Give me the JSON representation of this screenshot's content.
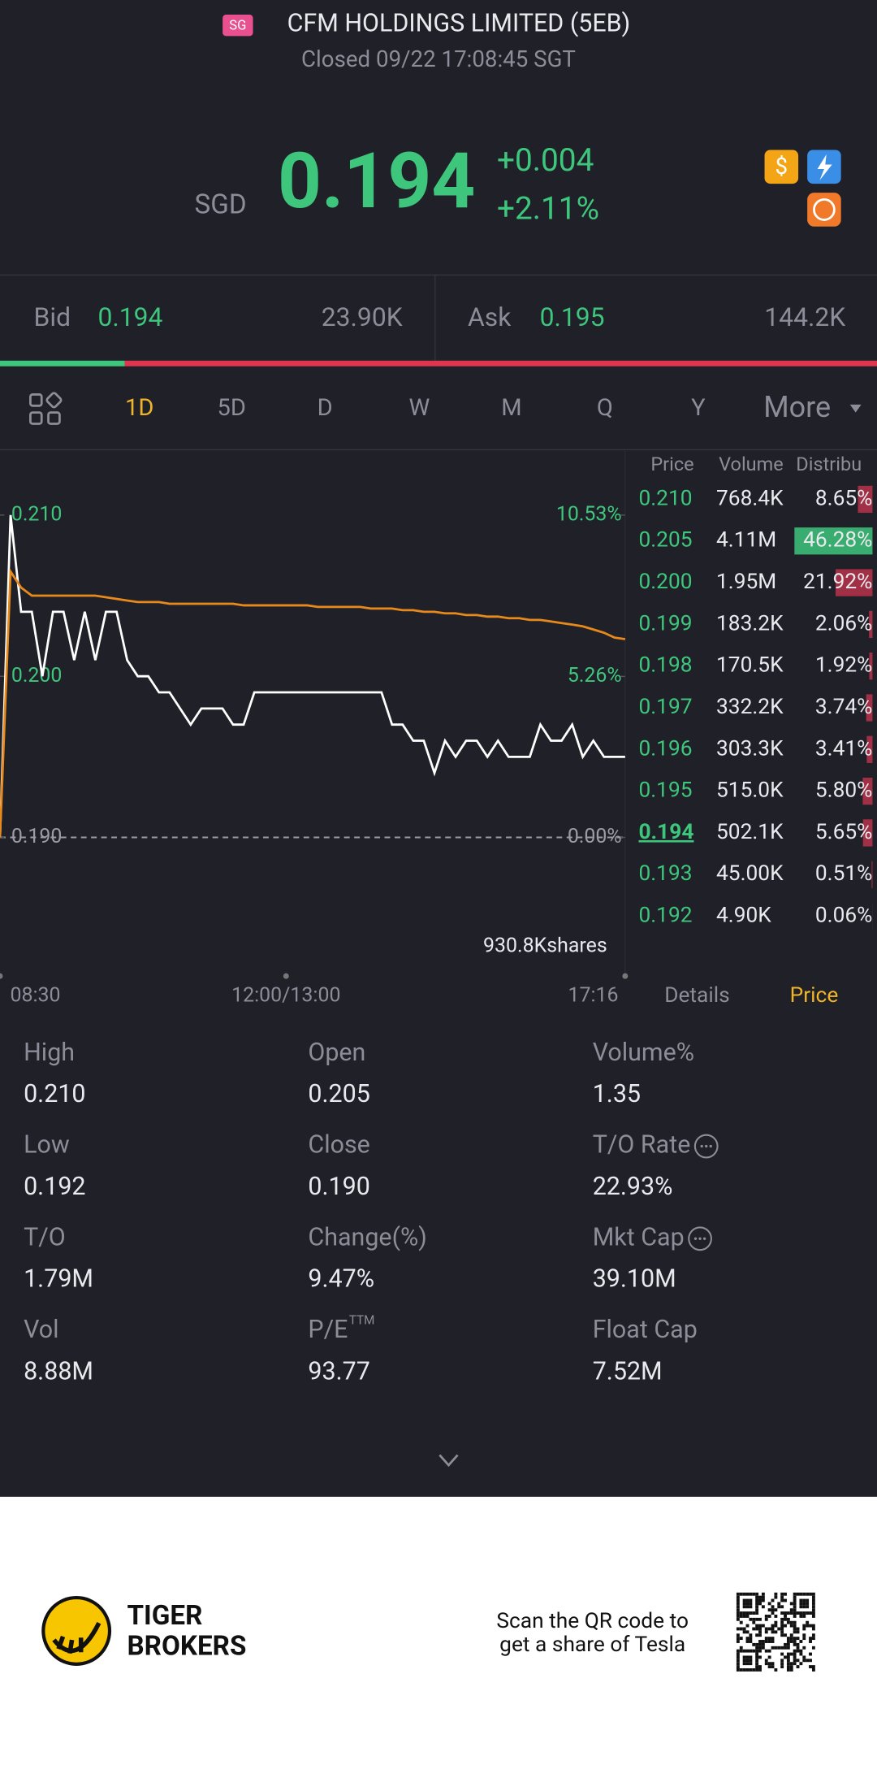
{
  "header": {
    "market_badge": "SG",
    "title": "CFM HOLDINGS LIMITED (5EB)",
    "status": "Closed 09/22 17:08:45 SGT"
  },
  "quote": {
    "currency": "SGD",
    "price": "0.194",
    "change": "+0.004",
    "change_pct": "+2.11%"
  },
  "bid_ask": {
    "bid_label": "Bid",
    "bid_price": "0.194",
    "bid_size": {
      "value": 23900,
      "label": "23.90K"
    },
    "ask_label": "Ask",
    "ask_price": "0.195",
    "ask_size": {
      "value": 144200,
      "label": "144.2K"
    }
  },
  "tabs": [
    "1D",
    "5D",
    "D",
    "W",
    "M",
    "Q",
    "Y",
    "More"
  ],
  "active_tab": 0,
  "chart_data": {
    "type": "line",
    "series": [
      {
        "color": "#ffffff",
        "values": [
          0.19,
          0.21,
          0.204,
          0.204,
          0.2,
          0.204,
          0.204,
          0.201,
          0.204,
          0.201,
          0.204,
          0.204,
          0.201,
          0.2,
          0.2,
          0.199,
          0.199,
          0.198,
          0.197,
          0.198,
          0.198,
          0.198,
          0.197,
          0.197,
          0.199,
          0.199,
          0.199,
          0.199,
          0.199,
          0.199,
          0.199,
          0.199,
          0.199,
          0.199,
          0.199,
          0.199,
          0.199,
          0.197,
          0.197,
          0.196,
          0.196,
          0.194,
          0.196,
          0.195,
          0.196,
          0.196,
          0.195,
          0.196,
          0.195,
          0.195,
          0.195,
          0.197,
          0.196,
          0.196,
          0.197,
          0.195,
          0.196,
          0.195,
          0.195,
          0.195
        ]
      },
      {
        "color": "#e8891c",
        "values": [
          0.19,
          0.2065,
          0.2055,
          0.205,
          0.205,
          0.205,
          0.205,
          0.205,
          0.205,
          0.205,
          0.2049,
          0.2048,
          0.2047,
          0.2046,
          0.2046,
          0.2046,
          0.2045,
          0.2045,
          0.2045,
          0.2045,
          0.2045,
          0.2045,
          0.2045,
          0.2044,
          0.2044,
          0.2044,
          0.2044,
          0.2044,
          0.2044,
          0.2044,
          0.2043,
          0.2043,
          0.2043,
          0.2043,
          0.2043,
          0.2042,
          0.2042,
          0.2042,
          0.2041,
          0.2041,
          0.204,
          0.204,
          0.2039,
          0.2039,
          0.2038,
          0.2038,
          0.2037,
          0.2037,
          0.2036,
          0.2036,
          0.2035,
          0.2035,
          0.2034,
          0.2033,
          0.2032,
          0.2031,
          0.2029,
          0.2027,
          0.2024,
          0.2023
        ]
      }
    ],
    "xlim": [
      0,
      59
    ],
    "xticks": [
      {
        "value": 0,
        "label": "08:30"
      },
      {
        "value": 27,
        "label": "12:00/13:00"
      },
      {
        "value": 59,
        "label": "17:16"
      }
    ],
    "ylim": [
      0.19,
      0.21
    ],
    "yticks": [
      {
        "value": 0.21,
        "label": "0.210"
      },
      {
        "value": 0.2,
        "label": "0.200"
      },
      {
        "value": 0.19,
        "label": "0.190"
      }
    ],
    "y2lim": [
      0,
      10.53
    ],
    "y2ticks": [
      {
        "value": 10.53,
        "label": "10.53%"
      },
      {
        "value": 5.26,
        "label": "5.26%"
      },
      {
        "value": 0,
        "label": "0.00%"
      }
    ],
    "reference_line": 0.19,
    "volume_label": "930.8Kshares"
  },
  "order_book": {
    "headers": [
      "Price",
      "Volume",
      "Distribu"
    ],
    "current_row": 8,
    "rows": [
      {
        "price": "0.210",
        "volume": "768.4K",
        "distribution": {
          "value": 8.65,
          "label": "8.65%"
        }
      },
      {
        "price": "0.205",
        "volume": "4.11M",
        "distribution": {
          "value": 46.28,
          "label": "46.28%"
        }
      },
      {
        "price": "0.200",
        "volume": "1.95M",
        "distribution": {
          "value": 21.92,
          "label": "21.92%"
        }
      },
      {
        "price": "0.199",
        "volume": "183.2K",
        "distribution": {
          "value": 2.06,
          "label": "2.06%"
        }
      },
      {
        "price": "0.198",
        "volume": "170.5K",
        "distribution": {
          "value": 1.92,
          "label": "1.92%"
        }
      },
      {
        "price": "0.197",
        "volume": "332.2K",
        "distribution": {
          "value": 3.74,
          "label": "3.74%"
        }
      },
      {
        "price": "0.196",
        "volume": "303.3K",
        "distribution": {
          "value": 3.41,
          "label": "3.41%"
        }
      },
      {
        "price": "0.195",
        "volume": "515.0K",
        "distribution": {
          "value": 5.8,
          "label": "5.80%"
        }
      },
      {
        "price": "0.194",
        "volume": "502.1K",
        "distribution": {
          "value": 5.65,
          "label": "5.65%"
        }
      },
      {
        "price": "0.193",
        "volume": "45.00K",
        "distribution": {
          "value": 0.51,
          "label": "0.51%"
        }
      },
      {
        "price": "0.192",
        "volume": "4.90K",
        "distribution": {
          "value": 0.06,
          "label": "0.06%"
        }
      }
    ]
  },
  "panel_tabs": [
    "Details",
    "Price"
  ],
  "active_panel_tab": 1,
  "stats": [
    {
      "label": "High",
      "value": "0.210"
    },
    {
      "label": "Open",
      "value": "0.205"
    },
    {
      "label": "Volume%",
      "value": "1.35"
    },
    {
      "label": "Low",
      "value": "0.192"
    },
    {
      "label": "Close",
      "value": "0.190"
    },
    {
      "label": "T/O Rate",
      "value": "22.93%",
      "info": true
    },
    {
      "label": "T/O",
      "value": "1.79M"
    },
    {
      "label": "Change(%)",
      "value": "9.47%"
    },
    {
      "label": "Mkt Cap",
      "value": "39.10M",
      "info": true
    },
    {
      "label": "Vol",
      "value": "8.88M"
    },
    {
      "label": "P/E",
      "sup": "TTM",
      "value": "93.77"
    },
    {
      "label": "Float Cap",
      "value": "7.52M"
    }
  ],
  "footer": {
    "brand": [
      "TIGER",
      "BROKERS"
    ],
    "promo": [
      "Scan the QR code to",
      "get a share of Tesla"
    ]
  }
}
